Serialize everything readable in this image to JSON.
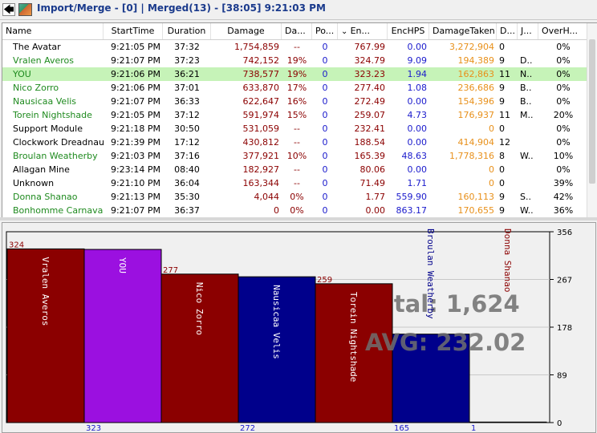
{
  "titlebar": {
    "back_glyph": "🡄",
    "text": "Import/Merge - [0] | Merged(13) - [38:05] 9:21:03 PM"
  },
  "columns": [
    "Name",
    "StartTime",
    "Duration",
    "Damage",
    "Da...",
    "Po...",
    "En...",
    "EncHPS",
    "DamageTaken",
    "D...",
    "J...",
    "OverH..."
  ],
  "sort_indicator": "⌄",
  "rows": [
    {
      "name": "The Avatar",
      "start": "9:21:05 PM",
      "dur": "37:32",
      "dmg": "1,754,859",
      "da": "--",
      "po": "0",
      "en": "767.99",
      "hps": "0.00",
      "taken": "3,272,904",
      "d": "0",
      "j": "",
      "oh": "0%",
      "ncol": "#000"
    },
    {
      "name": "Vralen Averos",
      "start": "9:21:07 PM",
      "dur": "37:23",
      "dmg": "742,152",
      "da": "19%",
      "po": "0",
      "en": "324.79",
      "hps": "9.09",
      "taken": "194,389",
      "d": "9",
      "j": "D..",
      "oh": "0%",
      "ncol": "#1e8a1e"
    },
    {
      "name": "YOU",
      "start": "9:21:06 PM",
      "dur": "36:21",
      "dmg": "738,577",
      "da": "19%",
      "po": "0",
      "en": "323.23",
      "hps": "1.94",
      "taken": "162,863",
      "d": "11",
      "j": "N..",
      "oh": "0%",
      "ncol": "#1e8a1e"
    },
    {
      "name": "Nico Zorro",
      "start": "9:21:06 PM",
      "dur": "37:01",
      "dmg": "633,870",
      "da": "17%",
      "po": "0",
      "en": "277.40",
      "hps": "1.08",
      "taken": "236,686",
      "d": "9",
      "j": "B..",
      "oh": "0%",
      "ncol": "#1e8a1e"
    },
    {
      "name": "Nausicaa Velis",
      "start": "9:21:07 PM",
      "dur": "36:33",
      "dmg": "622,647",
      "da": "16%",
      "po": "0",
      "en": "272.49",
      "hps": "0.00",
      "taken": "154,396",
      "d": "9",
      "j": "B..",
      "oh": "0%",
      "ncol": "#1e8a1e"
    },
    {
      "name": "Torein Nightshade",
      "start": "9:21:05 PM",
      "dur": "37:12",
      "dmg": "591,974",
      "da": "15%",
      "po": "0",
      "en": "259.07",
      "hps": "4.73",
      "taken": "176,937",
      "d": "11",
      "j": "M..",
      "oh": "20%",
      "ncol": "#1e8a1e"
    },
    {
      "name": "Support Module",
      "start": "9:21:18 PM",
      "dur": "30:50",
      "dmg": "531,059",
      "da": "--",
      "po": "0",
      "en": "232.41",
      "hps": "0.00",
      "taken": "0",
      "d": "0",
      "j": "",
      "oh": "0%",
      "ncol": "#000"
    },
    {
      "name": "Clockwork Dreadnau...",
      "start": "9:21:39 PM",
      "dur": "17:12",
      "dmg": "430,812",
      "da": "--",
      "po": "0",
      "en": "188.54",
      "hps": "0.00",
      "taken": "414,904",
      "d": "12",
      "j": "",
      "oh": "0%",
      "ncol": "#000"
    },
    {
      "name": "Broulan Weatherby",
      "start": "9:21:03 PM",
      "dur": "37:16",
      "dmg": "377,921",
      "da": "10%",
      "po": "0",
      "en": "165.39",
      "hps": "48.63",
      "taken": "1,778,316",
      "d": "8",
      "j": "W..",
      "oh": "10%",
      "ncol": "#1e8a1e"
    },
    {
      "name": "Allagan Mine",
      "start": "9:23:14 PM",
      "dur": "08:40",
      "dmg": "182,927",
      "da": "--",
      "po": "0",
      "en": "80.06",
      "hps": "0.00",
      "taken": "0",
      "d": "0",
      "j": "",
      "oh": "0%",
      "ncol": "#000"
    },
    {
      "name": "Unknown",
      "start": "9:21:10 PM",
      "dur": "36:04",
      "dmg": "163,344",
      "da": "--",
      "po": "0",
      "en": "71.49",
      "hps": "1.71",
      "taken": "0",
      "d": "0",
      "j": "",
      "oh": "39%",
      "ncol": "#000"
    },
    {
      "name": "Donna Shanao",
      "start": "9:21:13 PM",
      "dur": "35:30",
      "dmg": "4,044",
      "da": "0%",
      "po": "0",
      "en": "1.77",
      "hps": "559.90",
      "taken": "160,113",
      "d": "9",
      "j": "S..",
      "oh": "42%",
      "ncol": "#1e8a1e"
    },
    {
      "name": "Bonhomme Carnaval",
      "start": "9:21:07 PM",
      "dur": "36:37",
      "dmg": "0",
      "da": "0%",
      "po": "0",
      "en": "0.00",
      "hps": "863.17",
      "taken": "170,655",
      "d": "9",
      "j": "W..",
      "oh": "36%",
      "ncol": "#1e8a1e"
    }
  ],
  "colors": {
    "damage": "#8b0000",
    "po": "#1a1acc",
    "hps": "#1a1acc",
    "taken": "#e8901a",
    "selected_row": "#c6f3b8"
  },
  "chart_data": {
    "type": "bar",
    "title": "",
    "ylim": [
      0,
      356
    ],
    "yticks": [
      "356",
      "267",
      "178",
      "89",
      "0"
    ],
    "categories": [
      "Vralen Averos",
      "YOU",
      "Nico Zorro",
      "Nausicaa Velis",
      "Torein Nightshade",
      "Broulan Weatherby",
      "Donna Shanao"
    ],
    "values": [
      324,
      323,
      277,
      272,
      259,
      165,
      1
    ],
    "top_labels": [
      "324",
      "",
      "277",
      "",
      "259",
      "",
      ""
    ],
    "bottom_labels": [
      "",
      "323",
      "",
      "272",
      "",
      "165",
      "1"
    ],
    "bar_colors": [
      "#8b0000",
      "#9b10e0",
      "#8b0000",
      "#00008b",
      "#8b0000",
      "#00008b",
      "#8b0000"
    ],
    "total_text": "Total: 1,624",
    "avg_text": "AVG: 232.02"
  }
}
